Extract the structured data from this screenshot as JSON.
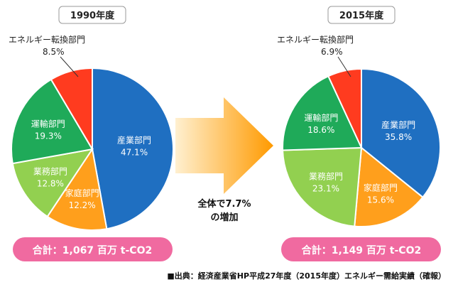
{
  "chart_data": [
    {
      "type": "pie",
      "title": "1990年度",
      "total_label": "合計：1,067 百万 t-CO2",
      "slices": [
        {
          "name": "産業部門",
          "value": 47.1,
          "display": "47.1%",
          "color": "#1f6fc1"
        },
        {
          "name": "家庭部門",
          "value": 12.2,
          "display": "12.2%",
          "color": "#ff9f1c"
        },
        {
          "name": "業務部門",
          "value": 12.8,
          "display": "12.8%",
          "color": "#92d050"
        },
        {
          "name": "運輸部門",
          "value": 19.3,
          "display": "19.3%",
          "color": "#1faa59"
        },
        {
          "name": "エネルギー転換部門",
          "value": 8.5,
          "display": "8.5%",
          "color": "#ff3b1f"
        }
      ]
    },
    {
      "type": "pie",
      "title": "2015年度",
      "total_label": "合計：1,149 百万 t-CO2",
      "slices": [
        {
          "name": "産業部門",
          "value": 35.8,
          "display": "35.8%",
          "color": "#1f6fc1"
        },
        {
          "name": "家庭部門",
          "value": 15.6,
          "display": "15.6%",
          "color": "#ff9f1c"
        },
        {
          "name": "業務部門",
          "value": 23.1,
          "display": "23.1%",
          "color": "#92d050"
        },
        {
          "name": "運輸部門",
          "value": 18.6,
          "display": "18.6%",
          "color": "#1faa59"
        },
        {
          "name": "エネルギー転換部門",
          "value": 6.9,
          "display": "6.9%",
          "color": "#ff3b1f"
        }
      ]
    }
  ],
  "arrow_text": {
    "line1": "全体で7.7%",
    "line2": "の増加"
  },
  "source_note": "■出典：経済産業省HP平成27年度（2015年度）エネルギー需給実績（確報）",
  "colors": {
    "total_pill": "#f06aa0",
    "arrow_start": "#fff0d0",
    "arrow_end": "#ff9a00"
  }
}
